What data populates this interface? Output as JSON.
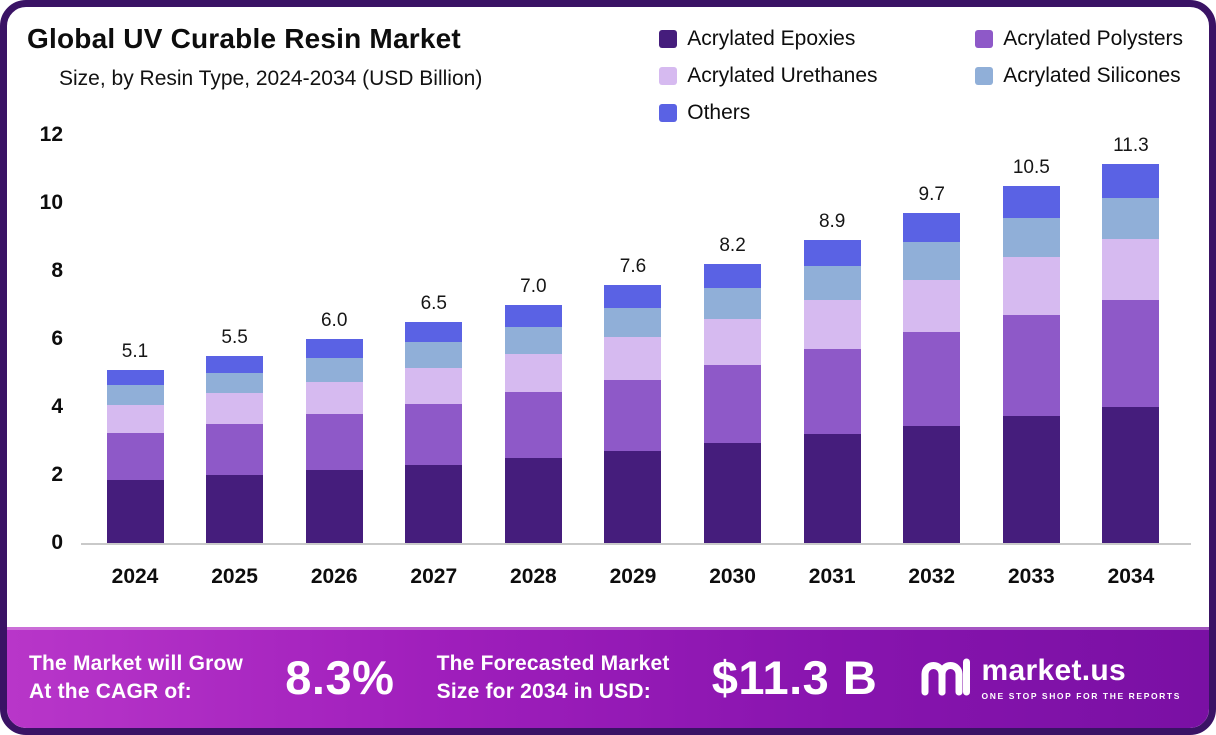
{
  "header": {
    "title": "Global UV Curable Resin Market",
    "subtitle": "Size, by Resin Type, 2024-2034 (USD Billion)"
  },
  "legend": [
    {
      "label": "Acrylated Epoxies",
      "color": "#451d7c"
    },
    {
      "label": "Acrylated Polysters",
      "color": "#8e59c8"
    },
    {
      "label": "Acrylated Urethanes",
      "color": "#d6baf0"
    },
    {
      "label": "Acrylated Silicones",
      "color": "#90afd8"
    },
    {
      "label": "Others",
      "color": "#5a62e4"
    }
  ],
  "chart_data": {
    "type": "bar",
    "stacked": true,
    "title": "Global UV Curable Resin Market Size, by Resin Type, 2024-2034 (USD Billion)",
    "xlabel": "",
    "ylabel": "",
    "ylim": [
      0,
      12
    ],
    "yticks": [
      0,
      2,
      4,
      6,
      8,
      10,
      12
    ],
    "grid": false,
    "legend_position": "top-right",
    "categories": [
      "2024",
      "2025",
      "2026",
      "2027",
      "2028",
      "2029",
      "2030",
      "2031",
      "2032",
      "2033",
      "2034"
    ],
    "totals": [
      5.1,
      5.5,
      6.0,
      6.5,
      7.0,
      7.6,
      8.2,
      8.9,
      9.7,
      10.5,
      11.3
    ],
    "series": [
      {
        "name": "Acrylated Epoxies",
        "color": "#451d7c",
        "values": [
          1.85,
          2.0,
          2.15,
          2.3,
          2.5,
          2.7,
          2.95,
          3.2,
          3.45,
          3.75,
          4.05
        ]
      },
      {
        "name": "Acrylated Polysters",
        "color": "#8e59c8",
        "values": [
          1.4,
          1.5,
          1.65,
          1.8,
          1.95,
          2.1,
          2.3,
          2.5,
          2.75,
          2.95,
          3.2
        ]
      },
      {
        "name": "Acrylated Urethanes",
        "color": "#d6baf0",
        "values": [
          0.8,
          0.9,
          0.95,
          1.05,
          1.1,
          1.25,
          1.35,
          1.45,
          1.55,
          1.7,
          1.8
        ]
      },
      {
        "name": "Acrylated Silicones",
        "color": "#90afd8",
        "values": [
          0.6,
          0.6,
          0.7,
          0.75,
          0.8,
          0.85,
          0.9,
          1.0,
          1.1,
          1.15,
          1.25
        ]
      },
      {
        "name": "Others",
        "color": "#5a62e4",
        "values": [
          0.45,
          0.5,
          0.55,
          0.6,
          0.65,
          0.7,
          0.7,
          0.75,
          0.85,
          0.95,
          1.0
        ]
      }
    ]
  },
  "banner": {
    "cagr": {
      "line1": "The Market will Grow",
      "line2": "At the CAGR of:",
      "value": "8.3%"
    },
    "forecast": {
      "line1": "The Forecasted Market",
      "line2": "Size for 2034 in USD:",
      "value": "$11.3 B"
    },
    "logo": {
      "name": "market.us",
      "tagline": "ONE STOP SHOP FOR THE REPORTS"
    },
    "gradient_left": "#b836c9",
    "gradient_right": "#7a10a4"
  },
  "frame": {
    "border_color": "#3a1365"
  }
}
